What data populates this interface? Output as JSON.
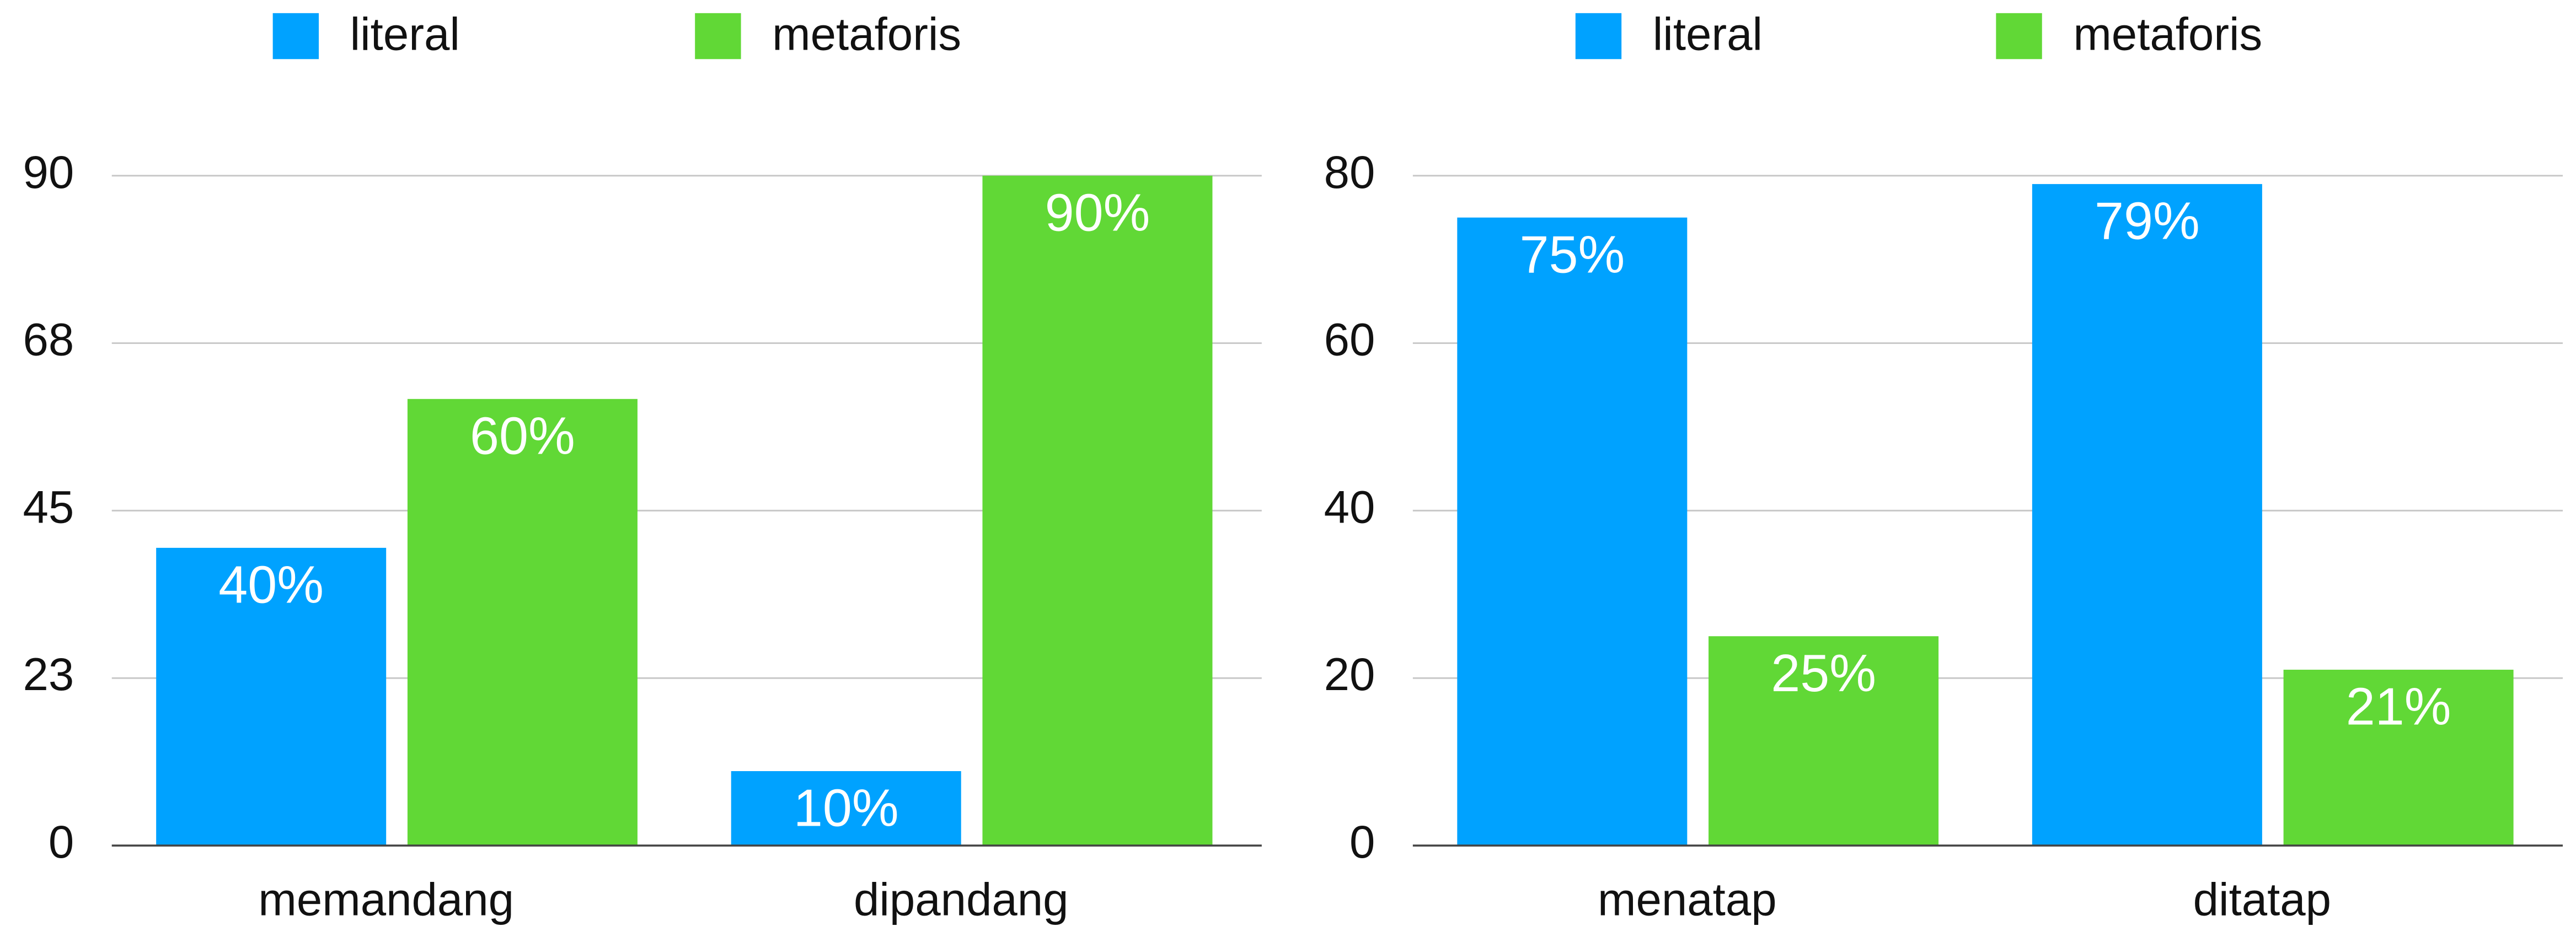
{
  "chart_data": [
    {
      "type": "bar",
      "categories": [
        "memandang",
        "dipandang"
      ],
      "series": [
        {
          "name": "literal",
          "color": "#00a2ff",
          "values": [
            40,
            10
          ],
          "value_labels": [
            "40%",
            "10%"
          ]
        },
        {
          "name": "metaforis",
          "color": "#61d836",
          "values": [
            60,
            90
          ],
          "value_labels": [
            "60%",
            "90%"
          ]
        }
      ],
      "ylim": [
        0,
        90
      ],
      "yticks": [
        0,
        {
          "value": 22.5,
          "label": "23"
        },
        45,
        {
          "value": 67.5,
          "label": "68"
        },
        90
      ],
      "grid": true,
      "legend": "top"
    },
    {
      "type": "bar",
      "categories": [
        "menatap",
        "ditatap"
      ],
      "series": [
        {
          "name": "literal",
          "color": "#00a2ff",
          "values": [
            75,
            79
          ],
          "value_labels": [
            "75%",
            "79%"
          ]
        },
        {
          "name": "metaforis",
          "color": "#61d836",
          "values": [
            25,
            21
          ],
          "value_labels": [
            "25%",
            "21%"
          ]
        }
      ],
      "ylim": [
        0,
        80
      ],
      "yticks": [
        0,
        20,
        40,
        60,
        80
      ],
      "grid": true,
      "legend": "top"
    }
  ]
}
